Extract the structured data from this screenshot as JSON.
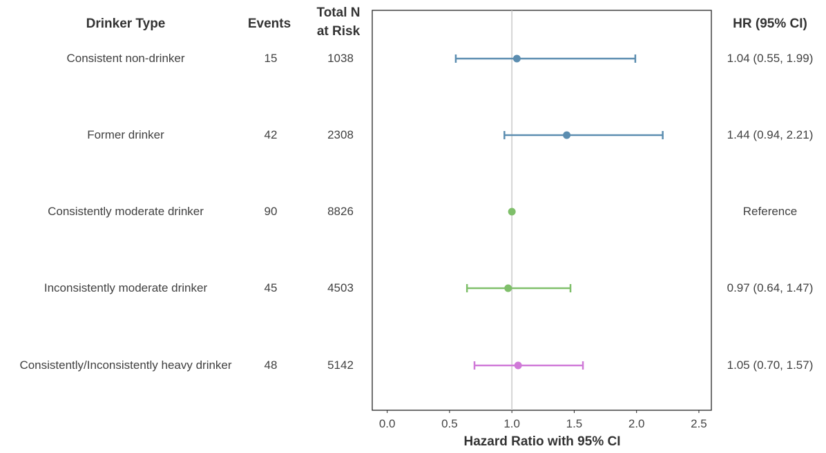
{
  "headers": {
    "drinker_type": "Drinker Type",
    "events": "Events",
    "total_n_line1": "Total N",
    "total_n_line2": "at Risk",
    "hr": "HR (95% CI)"
  },
  "chart_data": {
    "type": "forest",
    "xlabel": "Hazard Ratio with 95% CI",
    "xlim": [
      -0.12,
      2.6
    ],
    "xticks": [
      0.0,
      0.5,
      1.0,
      1.5,
      2.0,
      2.5
    ],
    "xtick_labels": [
      "0.0",
      "0.5",
      "1.0",
      "1.5",
      "2.0",
      "2.5"
    ],
    "reference_line": 1.0,
    "rows": [
      {
        "label": "Consistent non-drinker",
        "events": "15",
        "n": "1038",
        "hr": 1.04,
        "lo": 0.55,
        "hi": 1.99,
        "hr_text": "1.04 (0.55, 1.99)",
        "color": "#5b8db0"
      },
      {
        "label": "Former drinker",
        "events": "42",
        "n": "2308",
        "hr": 1.44,
        "lo": 0.94,
        "hi": 2.21,
        "hr_text": "1.44 (0.94, 2.21)",
        "color": "#5b8db0"
      },
      {
        "label": "Consistently moderate drinker",
        "events": "90",
        "n": "8826",
        "hr": 1.0,
        "lo": null,
        "hi": null,
        "hr_text": "Reference",
        "color": "#7fbf6a"
      },
      {
        "label": "Inconsistently moderate drinker",
        "events": "45",
        "n": "4503",
        "hr": 0.97,
        "lo": 0.64,
        "hi": 1.47,
        "hr_text": "0.97 (0.64, 1.47)",
        "color": "#7fbf6a"
      },
      {
        "label": "Consistently/Inconsistently heavy drinker",
        "events": "48",
        "n": "5142",
        "hr": 1.05,
        "lo": 0.7,
        "hi": 1.57,
        "hr_text": "1.05 (0.70, 1.57)",
        "color": "#d07ad8"
      }
    ]
  }
}
